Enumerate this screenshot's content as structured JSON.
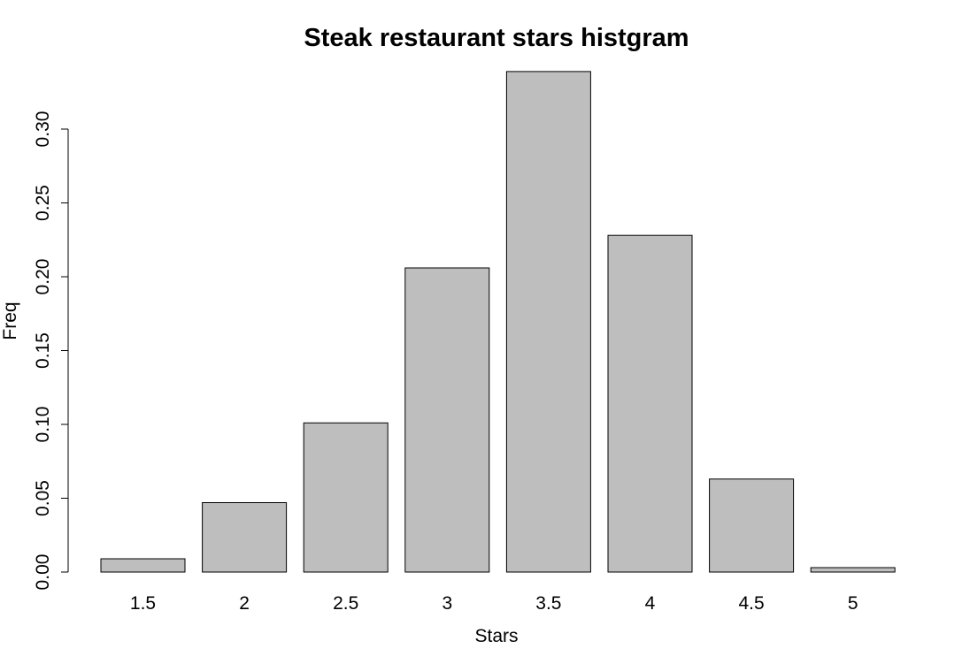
{
  "chart_data": {
    "type": "bar",
    "title": "Steak restaurant stars histgram",
    "xlabel": "Stars",
    "ylabel": "Freq",
    "categories": [
      "1.5",
      "2",
      "2.5",
      "3",
      "3.5",
      "4",
      "4.5",
      "5"
    ],
    "values": [
      0.009,
      0.047,
      0.101,
      0.206,
      0.339,
      0.228,
      0.063,
      0.003
    ],
    "ylim": [
      0,
      0.34
    ],
    "yticks": [
      0.0,
      0.05,
      0.1,
      0.15,
      0.2,
      0.25,
      0.3
    ],
    "ytick_labels": [
      "0.00",
      "0.05",
      "0.10",
      "0.15",
      "0.20",
      "0.25",
      "0.30"
    ],
    "bar_color": "#bebebe",
    "grid": false,
    "legend": "none"
  }
}
